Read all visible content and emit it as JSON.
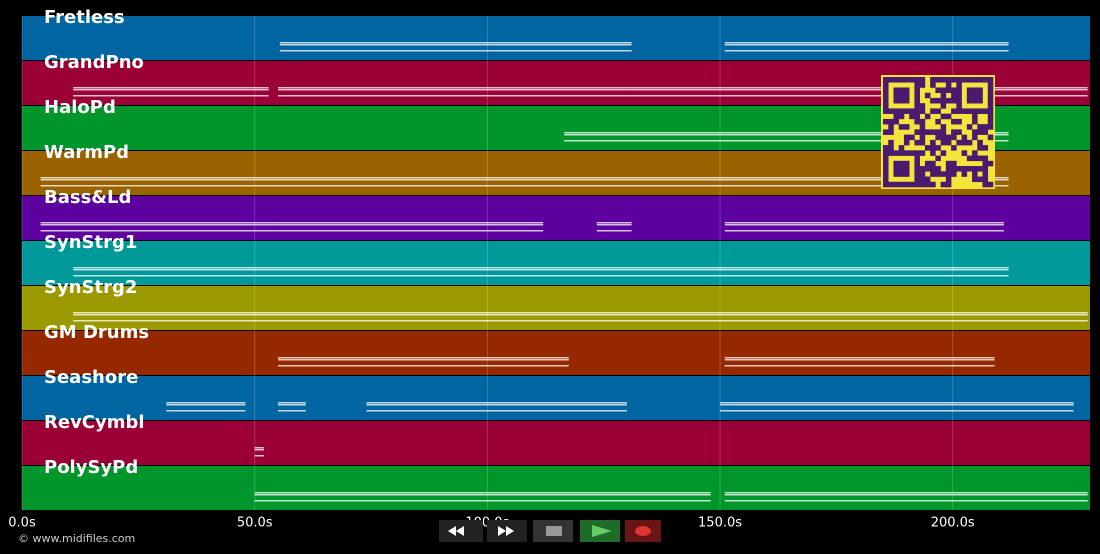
{
  "chart_data": {
    "type": "pianoroll",
    "xlim": [
      0,
      229.5
    ],
    "xticks": [
      {
        "value": 0,
        "label": "0.0s"
      },
      {
        "value": 50,
        "label": "50.0s"
      },
      {
        "value": 100,
        "label": "100.0s"
      },
      {
        "value": 150,
        "label": "150.0s"
      },
      {
        "value": 200,
        "label": "200.0s"
      }
    ],
    "grid": true,
    "tracks": [
      {
        "name": "Fretless",
        "color": "#0065a0",
        "notes": [
          [
            55.4,
            131
          ],
          [
            151,
            212
          ]
        ]
      },
      {
        "name": "GrandPno",
        "color": "#9a0036",
        "notes": [
          [
            11,
            53
          ],
          [
            55,
            130
          ],
          [
            130,
            229
          ]
        ]
      },
      {
        "name": "HaloPd",
        "color": "#00962c",
        "notes": [
          [
            116.5,
            212
          ]
        ]
      },
      {
        "name": "WarmPd",
        "color": "#9a6300",
        "notes": [
          [
            4,
            212
          ]
        ]
      },
      {
        "name": "Bass&Ld",
        "color": "#5c009e",
        "notes": [
          [
            4,
            55
          ],
          [
            55,
            112
          ],
          [
            123.5,
            131
          ],
          [
            151,
            211
          ]
        ]
      },
      {
        "name": "SynStrg1",
        "color": "#00999a",
        "notes": [
          [
            11,
            212
          ]
        ]
      },
      {
        "name": "SynStrg2",
        "color": "#9a9a00",
        "notes": [
          [
            11,
            229
          ]
        ]
      },
      {
        "name": "GM Drums",
        "color": "#962800",
        "notes": [
          [
            55,
            117.5
          ],
          [
            151,
            209
          ]
        ]
      },
      {
        "name": "Seashore",
        "color": "#0065a0",
        "notes": [
          [
            31,
            48
          ],
          [
            55,
            61
          ],
          [
            74,
            130
          ],
          [
            150,
            226
          ]
        ]
      },
      {
        "name": "RevCymbl",
        "color": "#9a0036",
        "notes": [
          [
            50,
            52
          ]
        ]
      },
      {
        "name": "PolySyPd",
        "color": "#00962c",
        "notes": [
          [
            50,
            148
          ],
          [
            151,
            229
          ]
        ]
      }
    ]
  },
  "footer": "© www.midifiles.com"
}
